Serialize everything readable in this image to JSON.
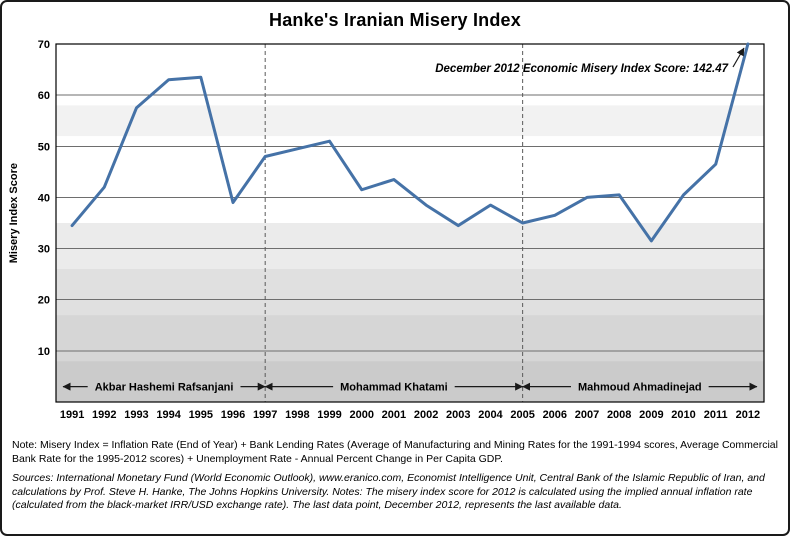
{
  "chart_data": {
    "type": "line",
    "title": "Hanke's Iranian Misery Index",
    "ylabel": "Misery Index Score",
    "ylim": [
      0,
      70
    ],
    "y_ticks": [
      10,
      20,
      30,
      40,
      50,
      60,
      70
    ],
    "grid": true,
    "legend": "none",
    "x": [
      1991,
      1992,
      1993,
      1994,
      1995,
      1996,
      1997,
      1998,
      1999,
      2000,
      2001,
      2002,
      2003,
      2004,
      2005,
      2006,
      2007,
      2008,
      2009,
      2010,
      2011,
      2012
    ],
    "series": [
      {
        "name": "Iranian Misery Index",
        "color": "#4572a7",
        "values": [
          34.5,
          42,
          57.5,
          63,
          63.5,
          39,
          48,
          49.5,
          51,
          41.5,
          43.5,
          38.5,
          34.5,
          38.5,
          35,
          36.5,
          40,
          40.5,
          31.5,
          40.5,
          46.5,
          142.47
        ]
      }
    ],
    "clipped_last_point": {
      "year": 2012,
      "actual_value": 142.47,
      "plotted_at_ymax": true
    },
    "annotation": {
      "text": "December 2012 Economic Misery Index Score: 142.47"
    },
    "era_dividers": [
      1997,
      2005
    ],
    "eras": [
      {
        "label": "Akbar Hashemi Rafsanjani",
        "start": 1991,
        "end": 1997
      },
      {
        "label": "Mohammad Khatami",
        "start": 1997,
        "end": 2005
      },
      {
        "label": "Mahmoud Ahmadinejad",
        "start": 2005,
        "end": 2012
      }
    ],
    "bands": [
      {
        "top": 58,
        "bottom": 52,
        "color": "#f2f2f2"
      },
      {
        "top": 35,
        "bottom": 26,
        "color": "#ebebeb"
      },
      {
        "top": 26,
        "bottom": 17,
        "color": "#e0e0e0"
      },
      {
        "top": 17,
        "bottom": 8,
        "color": "#d6d6d6"
      },
      {
        "top": 8,
        "bottom": 0,
        "color": "#cbcbcb"
      }
    ]
  },
  "notes": {
    "note": "Note: Misery Index = Inflation Rate (End of Year) + Bank Lending Rates (Average of Manufacturing and Mining Rates for the 1991-1994 scores, Average Commercial Bank Rate for the 1995-2012 scores) + Unemployment Rate - Annual Percent Change in Per Capita GDP.",
    "sources": "Sources: International Monetary Fund (World Economic Outlook), www.eranico.com, Economist Intelligence Unit, Central Bank of the Islamic Republic of Iran, and calculations by Prof. Steve H. Hanke, The Johns Hopkins University. Notes: The misery index score for 2012 is calculated using the implied annual inflation rate (calculated from the black-market IRR/USD exchange rate). The last data point, December 2012, represents the last available data."
  }
}
